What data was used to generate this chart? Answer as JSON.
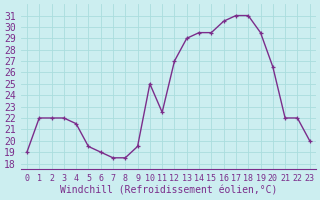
{
  "hours": [
    0,
    1,
    2,
    3,
    4,
    5,
    6,
    7,
    8,
    9,
    10,
    11,
    12,
    13,
    14,
    15,
    16,
    17,
    18,
    19,
    20,
    21,
    22,
    23
  ],
  "values": [
    19.0,
    22.0,
    22.0,
    22.0,
    21.5,
    19.5,
    19.0,
    18.5,
    18.5,
    19.5,
    25.0,
    22.5,
    27.0,
    29.0,
    29.5,
    29.5,
    30.5,
    31.0,
    31.0,
    29.5,
    26.5,
    22.0,
    22.0,
    20.0
  ],
  "line_color": "#7b2d8b",
  "marker": "+",
  "bg_color": "#cceef0",
  "grid_color": "#aadddd",
  "xlabel": "Windchill (Refroidissement éolien,°C)",
  "ylabel_ticks": [
    18,
    19,
    20,
    21,
    22,
    23,
    24,
    25,
    26,
    27,
    28,
    29,
    30,
    31
  ],
  "ylim": [
    17.5,
    32.0
  ],
  "xlim": [
    -0.5,
    23.5
  ],
  "tick_color": "#7b2d8b",
  "axis_label_color": "#7b2d8b",
  "xlabel_fontsize": 7.0,
  "ytick_fontsize": 7.0,
  "xtick_fontsize": 6.0
}
